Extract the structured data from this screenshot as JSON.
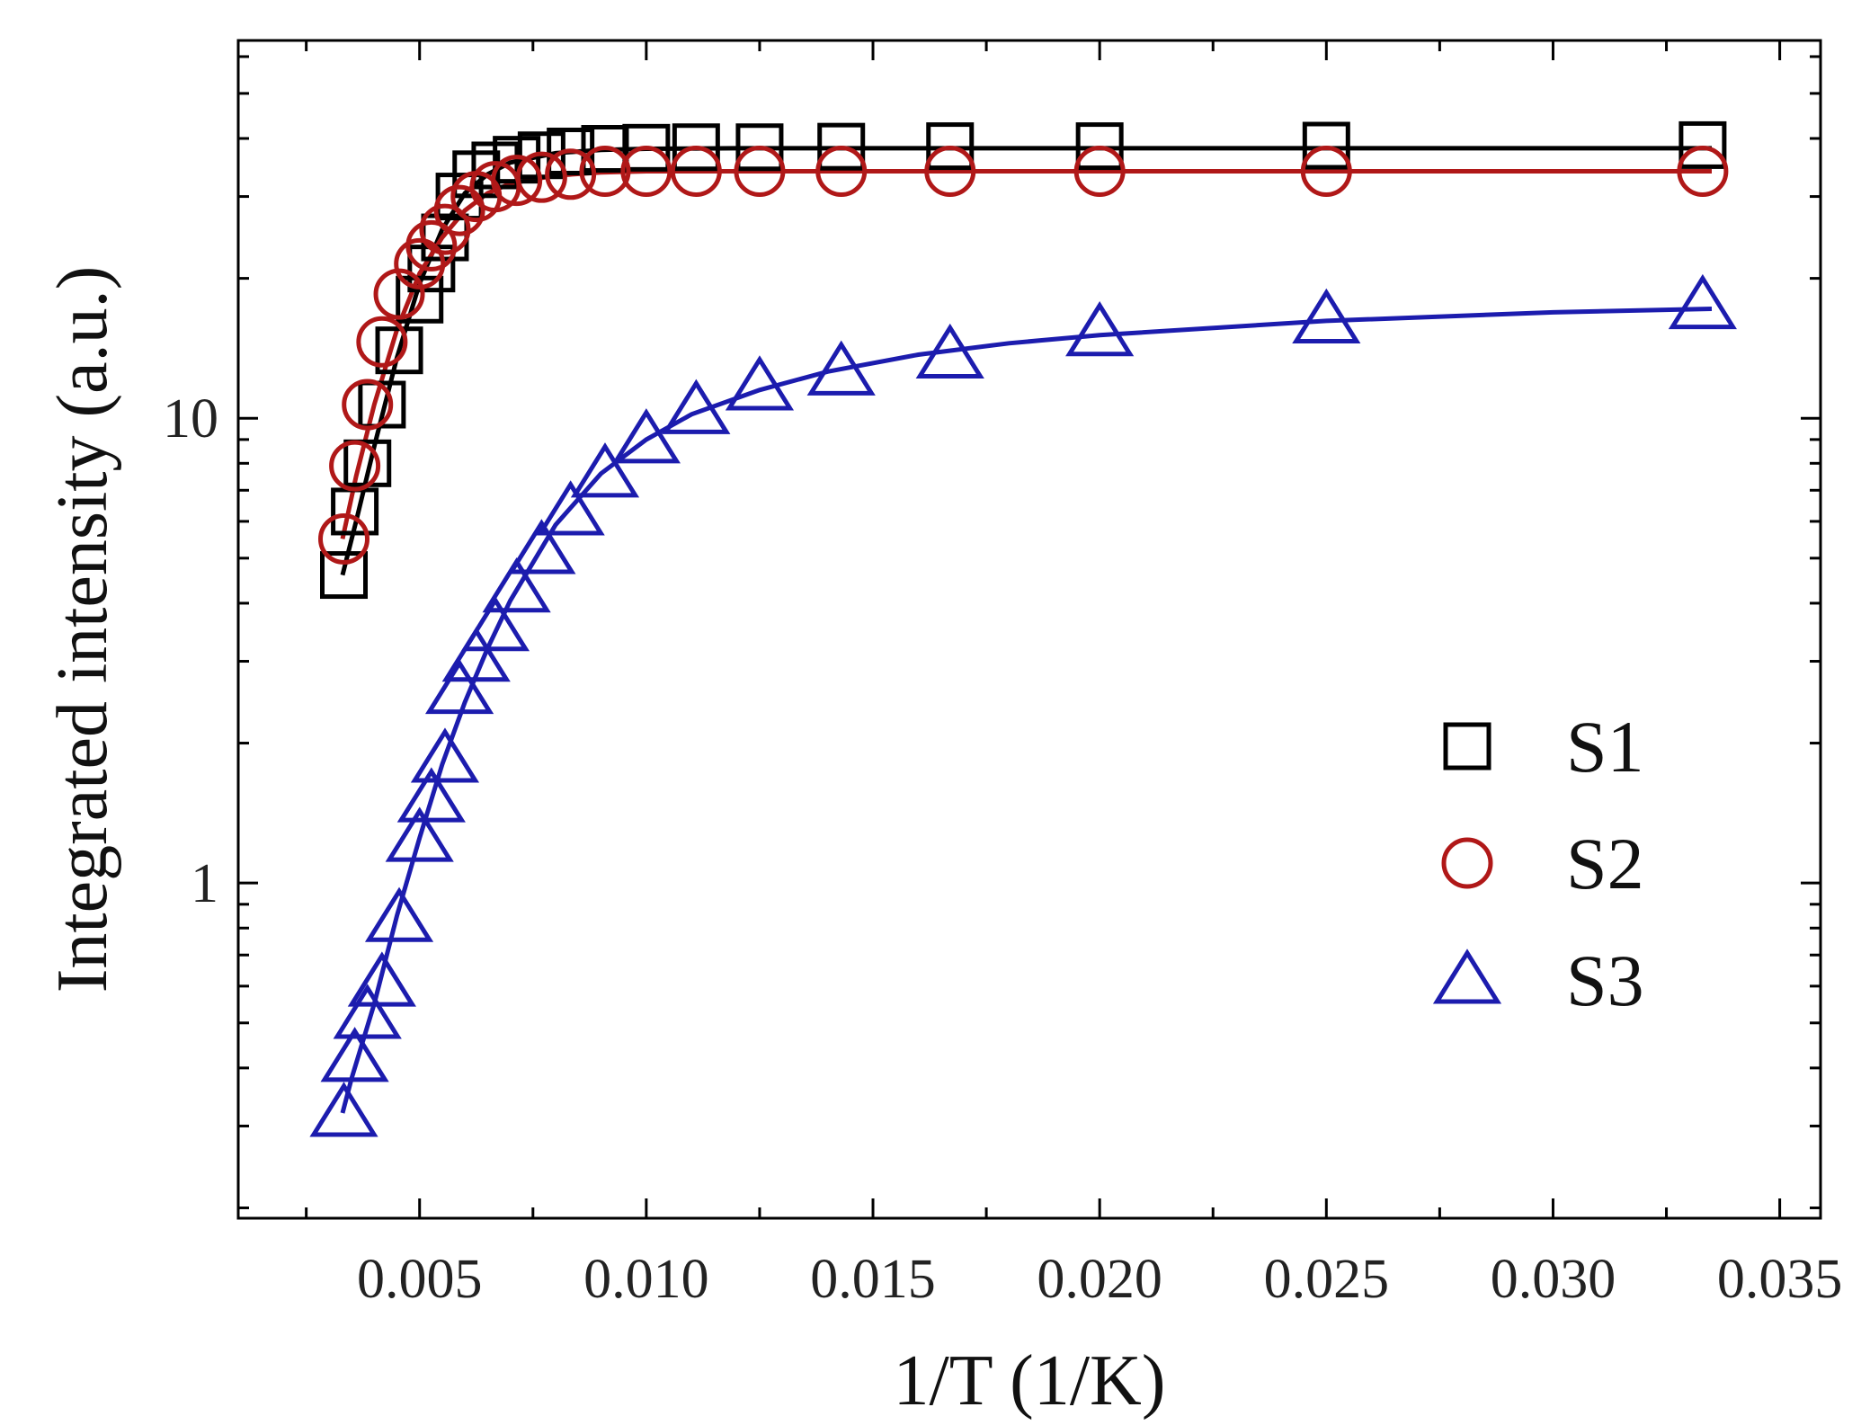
{
  "chart_data": {
    "type": "scatter",
    "title": "",
    "xlabel": "1/T (1/K)",
    "ylabel": "Integrated intensity (a.u.)",
    "xlim": [
      0.001,
      0.0359
    ],
    "ylim": [
      0.19,
      65
    ],
    "yscale": "log",
    "x_ticks": [
      0.005,
      0.01,
      0.015,
      0.02,
      0.025,
      0.03,
      0.035
    ],
    "x_tick_labels": [
      "0.005",
      "0.010",
      "0.015",
      "0.020",
      "0.025",
      "0.030",
      "0.035"
    ],
    "y_ticks": [
      1,
      10
    ],
    "y_tick_labels": [
      "1",
      "10"
    ],
    "legend_position": "bottom-right",
    "series": [
      {
        "name": "S1",
        "marker": "square",
        "color": "#000000",
        "x": [
          0.00333,
          0.00357,
          0.00385,
          0.00417,
          0.00455,
          0.005,
          0.00526,
          0.00556,
          0.00588,
          0.00625,
          0.00667,
          0.00714,
          0.00769,
          0.00833,
          0.00909,
          0.01,
          0.0111,
          0.0125,
          0.0143,
          0.0167,
          0.02,
          0.025,
          0.0333
        ],
        "y": [
          4.6,
          6.3,
          8.0,
          10.7,
          14.0,
          18.0,
          21.0,
          24.5,
          30.0,
          33.5,
          35.0,
          36.0,
          36.8,
          37.5,
          38.0,
          38.2,
          38.3,
          38.3,
          38.4,
          38.5,
          38.5,
          38.6,
          38.7
        ],
        "fit": {
          "x": [
            0.0033,
            0.0036,
            0.004,
            0.0045,
            0.005,
            0.0055,
            0.006,
            0.0065,
            0.007,
            0.008,
            0.009,
            0.01,
            0.012,
            0.015,
            0.02,
            0.025,
            0.0335
          ],
          "y": [
            4.6,
            6.0,
            8.7,
            13.5,
            19.5,
            25.5,
            30.5,
            33.5,
            35.5,
            37.2,
            37.8,
            38.0,
            38.1,
            38.1,
            38.1,
            38.1,
            38.1
          ]
        }
      },
      {
        "name": "S2",
        "marker": "circle",
        "color": "#b01818",
        "x": [
          0.00333,
          0.00357,
          0.00385,
          0.00417,
          0.00455,
          0.005,
          0.00526,
          0.00556,
          0.00588,
          0.00625,
          0.00667,
          0.00714,
          0.00769,
          0.00833,
          0.00909,
          0.01,
          0.0111,
          0.0125,
          0.0143,
          0.0167,
          0.02,
          0.025,
          0.0333
        ],
        "y": [
          5.5,
          7.9,
          10.7,
          14.6,
          18.5,
          21.5,
          23.5,
          25.5,
          28.0,
          30.0,
          31.5,
          32.5,
          33.0,
          33.5,
          34.0,
          34.0,
          34.0,
          34.0,
          34.0,
          34.0,
          34.0,
          34.0,
          34.0
        ],
        "fit": {
          "x": [
            0.0033,
            0.0036,
            0.004,
            0.0045,
            0.005,
            0.0055,
            0.006,
            0.0065,
            0.007,
            0.008,
            0.009,
            0.01,
            0.012,
            0.015,
            0.02,
            0.025,
            0.0335
          ],
          "y": [
            5.5,
            7.5,
            10.7,
            15.5,
            20.5,
            24.5,
            28.0,
            30.5,
            32.0,
            33.3,
            33.8,
            34.0,
            34.0,
            34.0,
            34.0,
            34.0,
            34.0
          ]
        }
      },
      {
        "name": "S3",
        "marker": "triangle",
        "color": "#1c1cae",
        "x": [
          0.00333,
          0.00357,
          0.00385,
          0.00417,
          0.00455,
          0.005,
          0.00526,
          0.00556,
          0.00588,
          0.00625,
          0.00667,
          0.00714,
          0.00769,
          0.00833,
          0.00909,
          0.01,
          0.0111,
          0.0125,
          0.0143,
          0.0167,
          0.02,
          0.025,
          0.0333
        ],
        "y": [
          0.32,
          0.42,
          0.52,
          0.61,
          0.84,
          1.25,
          1.52,
          1.85,
          2.6,
          3.05,
          3.55,
          4.3,
          5.2,
          6.3,
          7.6,
          9.0,
          10.4,
          11.7,
          12.6,
          13.7,
          15.3,
          16.3,
          17.5
        ],
        "fit": {
          "x": [
            0.0033,
            0.0035,
            0.004,
            0.0045,
            0.005,
            0.0055,
            0.006,
            0.0065,
            0.007,
            0.008,
            0.009,
            0.01,
            0.011,
            0.0125,
            0.014,
            0.016,
            0.018,
            0.02,
            0.025,
            0.03,
            0.0335
          ],
          "y": [
            0.32,
            0.38,
            0.55,
            0.85,
            1.25,
            1.8,
            2.45,
            3.2,
            4.05,
            5.9,
            7.6,
            9.0,
            10.2,
            11.5,
            12.6,
            13.7,
            14.5,
            15.1,
            16.2,
            16.9,
            17.2
          ]
        }
      }
    ]
  }
}
